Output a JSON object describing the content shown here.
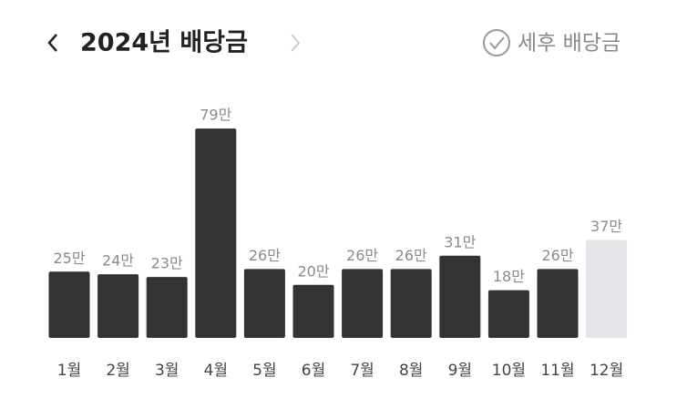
{
  "chart_data": {
    "type": "bar",
    "title": "2024년 배당금",
    "toggle_label": "세후 배당금",
    "categories": [
      "1월",
      "2월",
      "3월",
      "4월",
      "5월",
      "6월",
      "7월",
      "8월",
      "9월",
      "10월",
      "11월",
      "12월"
    ],
    "values": [
      25,
      24,
      23,
      79,
      26,
      20,
      26,
      26,
      31,
      18,
      26,
      37
    ],
    "value_labels": [
      "25만",
      "24만",
      "23만",
      "79만",
      "26만",
      "20만",
      "26만",
      "26만",
      "31만",
      "18만",
      "26만",
      "37만"
    ],
    "colors": [
      "#333333",
      "#333333",
      "#333333",
      "#333333",
      "#333333",
      "#333333",
      "#333333",
      "#333333",
      "#333333",
      "#333333",
      "#333333",
      "#e3e5e9"
    ]
  }
}
